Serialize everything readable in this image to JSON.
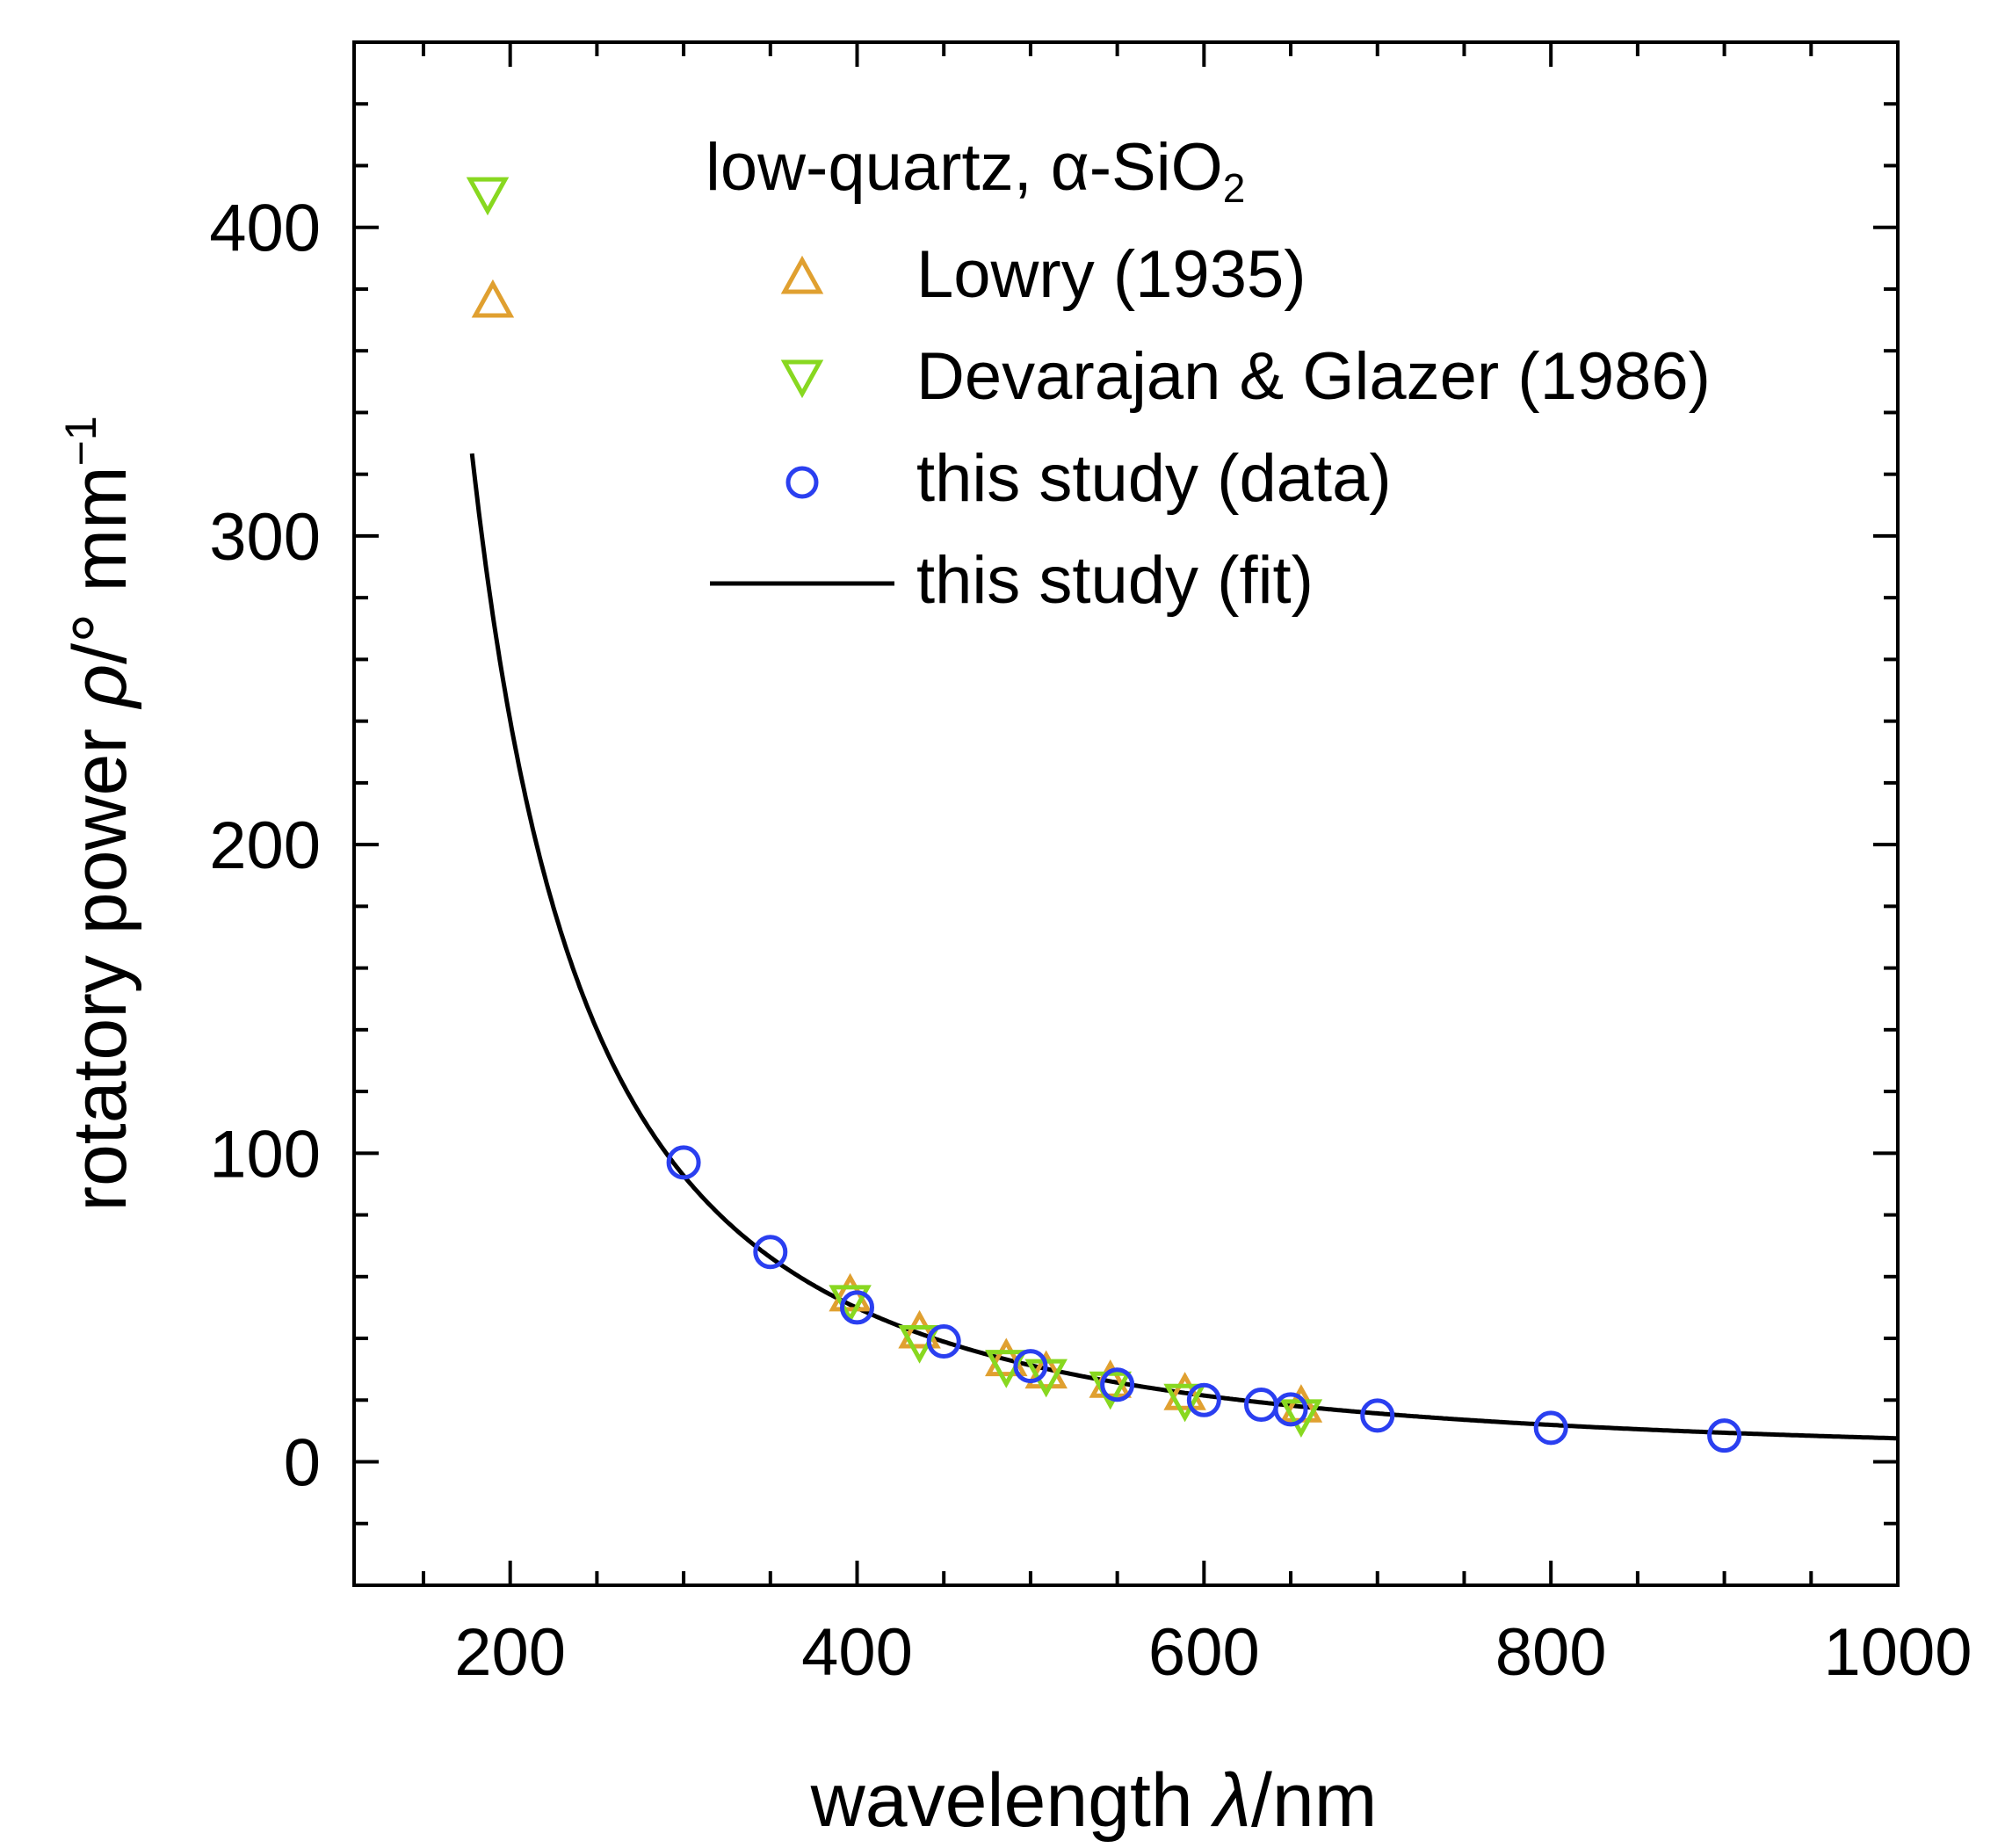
{
  "chart_data": {
    "type": "scatter",
    "title": "",
    "xlabel": {
      "text": "wavelength ",
      "symbol": "λ",
      "unit": "/nm"
    },
    "ylabel": {
      "text": "rotatory power ",
      "symbol": "ρ",
      "unit": "/° mm",
      "unit_sup": "−1"
    },
    "xlim": [
      110,
      1000
    ],
    "ylim": [
      -40,
      460
    ],
    "xticks": [
      200,
      400,
      600,
      800,
      1000
    ],
    "yticks": [
      0,
      100,
      200,
      300,
      400
    ],
    "grid": false,
    "legend": {
      "placement": "top-right",
      "title": "low-quartz, α-SiO",
      "title_sub": "2"
    },
    "series": [
      {
        "name": "Lowry (1935)",
        "marker": "triangle-up",
        "color": "#e0a030",
        "x": [
          190,
          396,
          436,
          486,
          509,
          546,
          589,
          656
        ],
        "y": [
          376,
          54,
          42,
          33,
          29,
          26,
          22,
          18
        ]
      },
      {
        "name": "Devarajan & Glazer (1986)",
        "marker": "triangle-down",
        "color": "#88d820",
        "x": [
          187,
          396,
          436,
          486,
          509,
          546,
          589,
          656
        ],
        "y": [
          411,
          52,
          39,
          31,
          28,
          24,
          20,
          15
        ]
      },
      {
        "name": "this study (data)",
        "marker": "circle",
        "color": "#2a3ff0",
        "x": [
          300,
          350,
          400,
          450,
          500,
          550,
          600,
          633,
          650,
          700,
          800,
          900
        ],
        "y": [
          97,
          68,
          50,
          39,
          31,
          25,
          20,
          18.5,
          17,
          15,
          11,
          8.5
        ]
      },
      {
        "name": "this study (fit)",
        "marker": "line",
        "color": "#000000",
        "model": {
          "A": 7550000.0,
          "lambda0": 92.6
        }
      }
    ]
  }
}
